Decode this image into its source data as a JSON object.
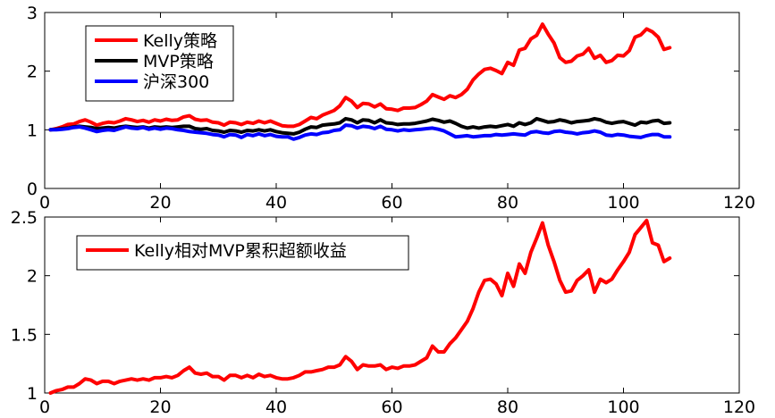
{
  "chart_data": [
    {
      "type": "line",
      "title": "",
      "xlabel": "",
      "ylabel": "",
      "xlim": [
        0,
        120
      ],
      "ylim": [
        0,
        3
      ],
      "xticks": [
        0,
        20,
        40,
        60,
        80,
        100,
        120
      ],
      "yticks": [
        0,
        1,
        2,
        3
      ],
      "xtick_labels": [
        "0",
        "20",
        "40",
        "60",
        "80",
        "100",
        "120"
      ],
      "ytick_labels": [
        "0",
        "1",
        "2",
        "3"
      ],
      "grid": false,
      "legend_position": "top-left",
      "x": [
        1,
        2,
        3,
        4,
        5,
        6,
        7,
        8,
        9,
        10,
        11,
        12,
        13,
        14,
        15,
        16,
        17,
        18,
        19,
        20,
        21,
        22,
        23,
        24,
        25,
        26,
        27,
        28,
        29,
        30,
        31,
        32,
        33,
        34,
        35,
        36,
        37,
        38,
        39,
        40,
        41,
        42,
        43,
        44,
        45,
        46,
        47,
        48,
        49,
        50,
        51,
        52,
        53,
        54,
        55,
        56,
        57,
        58,
        59,
        60,
        61,
        62,
        63,
        64,
        65,
        66,
        67,
        68,
        69,
        70,
        71,
        72,
        73,
        74,
        75,
        76,
        77,
        78,
        79,
        80,
        81,
        82,
        83,
        84,
        85,
        86,
        87,
        88,
        89,
        90,
        91,
        92,
        93,
        94,
        95,
        96,
        97,
        98,
        99,
        100,
        101,
        102,
        103,
        104,
        105,
        106,
        107,
        108
      ],
      "series": [
        {
          "name": "Kelly策略",
          "color": "#ff0000",
          "values": [
            1.0,
            1.02,
            1.05,
            1.09,
            1.1,
            1.14,
            1.17,
            1.13,
            1.08,
            1.11,
            1.13,
            1.12,
            1.15,
            1.19,
            1.17,
            1.14,
            1.16,
            1.13,
            1.17,
            1.15,
            1.18,
            1.16,
            1.17,
            1.22,
            1.24,
            1.18,
            1.16,
            1.17,
            1.13,
            1.12,
            1.08,
            1.13,
            1.12,
            1.09,
            1.13,
            1.11,
            1.15,
            1.12,
            1.15,
            1.11,
            1.07,
            1.06,
            1.06,
            1.09,
            1.15,
            1.21,
            1.19,
            1.25,
            1.29,
            1.33,
            1.41,
            1.55,
            1.49,
            1.38,
            1.45,
            1.44,
            1.39,
            1.44,
            1.36,
            1.35,
            1.33,
            1.37,
            1.37,
            1.38,
            1.43,
            1.49,
            1.6,
            1.56,
            1.52,
            1.58,
            1.55,
            1.6,
            1.69,
            1.85,
            1.95,
            2.03,
            2.05,
            2.01,
            1.96,
            2.15,
            2.1,
            2.36,
            2.39,
            2.55,
            2.61,
            2.8,
            2.63,
            2.48,
            2.23,
            2.15,
            2.17,
            2.26,
            2.29,
            2.39,
            2.22,
            2.27,
            2.15,
            2.18,
            2.27,
            2.26,
            2.35,
            2.58,
            2.62,
            2.72,
            2.67,
            2.58,
            2.37,
            2.4
          ]
        },
        {
          "name": "MVP策略",
          "color": "#000000",
          "values": [
            1.0,
            1.01,
            1.02,
            1.03,
            1.05,
            1.06,
            1.05,
            1.04,
            1.02,
            1.03,
            1.04,
            1.03,
            1.05,
            1.06,
            1.05,
            1.04,
            1.05,
            1.03,
            1.05,
            1.04,
            1.05,
            1.04,
            1.05,
            1.06,
            1.06,
            1.02,
            1.01,
            1.02,
            0.99,
            0.98,
            0.96,
            0.99,
            0.98,
            0.96,
            0.99,
            0.98,
            1.0,
            0.98,
            1.0,
            0.97,
            0.95,
            0.94,
            0.93,
            0.96,
            1.01,
            1.05,
            1.04,
            1.08,
            1.09,
            1.1,
            1.12,
            1.19,
            1.17,
            1.12,
            1.17,
            1.16,
            1.12,
            1.17,
            1.12,
            1.11,
            1.09,
            1.1,
            1.1,
            1.11,
            1.13,
            1.15,
            1.18,
            1.16,
            1.13,
            1.15,
            1.11,
            1.06,
            1.03,
            1.05,
            1.03,
            1.05,
            1.06,
            1.05,
            1.07,
            1.09,
            1.06,
            1.12,
            1.09,
            1.12,
            1.19,
            1.16,
            1.13,
            1.14,
            1.17,
            1.15,
            1.12,
            1.14,
            1.15,
            1.16,
            1.19,
            1.17,
            1.13,
            1.11,
            1.13,
            1.14,
            1.11,
            1.08,
            1.13,
            1.12,
            1.15,
            1.16,
            1.11,
            1.12
          ]
        },
        {
          "name": "沪深300",
          "color": "#0000ff",
          "values": [
            1.0,
            1.0,
            1.01,
            1.02,
            1.04,
            1.05,
            1.03,
            1.0,
            0.97,
            0.99,
            1.0,
            0.99,
            1.02,
            1.05,
            1.03,
            1.02,
            1.04,
            1.01,
            1.03,
            1.01,
            1.03,
            1.02,
            1.0,
            0.99,
            0.97,
            0.96,
            0.95,
            0.94,
            0.92,
            0.91,
            0.88,
            0.92,
            0.91,
            0.87,
            0.92,
            0.9,
            0.93,
            0.9,
            0.92,
            0.89,
            0.88,
            0.88,
            0.84,
            0.87,
            0.91,
            0.93,
            0.92,
            0.95,
            0.96,
            0.99,
            1.0,
            1.08,
            1.07,
            1.03,
            1.06,
            1.05,
            1.02,
            1.06,
            1.01,
            1.0,
            0.98,
            1.0,
            0.99,
            1.0,
            1.01,
            1.02,
            1.03,
            1.01,
            0.98,
            0.93,
            0.88,
            0.89,
            0.9,
            0.88,
            0.89,
            0.9,
            0.9,
            0.92,
            0.91,
            0.92,
            0.93,
            0.92,
            0.91,
            0.96,
            0.97,
            0.95,
            0.94,
            0.97,
            0.98,
            0.96,
            0.95,
            0.93,
            0.95,
            0.96,
            0.98,
            0.96,
            0.91,
            0.9,
            0.92,
            0.91,
            0.89,
            0.88,
            0.87,
            0.9,
            0.92,
            0.92,
            0.88,
            0.88
          ]
        }
      ]
    },
    {
      "type": "line",
      "title": "",
      "xlabel": "",
      "ylabel": "",
      "xlim": [
        0,
        120
      ],
      "ylim": [
        1,
        2.5
      ],
      "xticks": [
        0,
        20,
        40,
        60,
        80,
        100,
        120
      ],
      "yticks": [
        1,
        1.5,
        2,
        2.5
      ],
      "xtick_labels": [
        "0",
        "20",
        "40",
        "60",
        "80",
        "100",
        "120"
      ],
      "ytick_labels": [
        "1",
        "1.5",
        "2",
        "2.5"
      ],
      "grid": false,
      "legend_position": "top-left",
      "x": [
        1,
        2,
        3,
        4,
        5,
        6,
        7,
        8,
        9,
        10,
        11,
        12,
        13,
        14,
        15,
        16,
        17,
        18,
        19,
        20,
        21,
        22,
        23,
        24,
        25,
        26,
        27,
        28,
        29,
        30,
        31,
        32,
        33,
        34,
        35,
        36,
        37,
        38,
        39,
        40,
        41,
        42,
        43,
        44,
        45,
        46,
        47,
        48,
        49,
        50,
        51,
        52,
        53,
        54,
        55,
        56,
        57,
        58,
        59,
        60,
        61,
        62,
        63,
        64,
        65,
        66,
        67,
        68,
        69,
        70,
        71,
        72,
        73,
        74,
        75,
        76,
        77,
        78,
        79,
        80,
        81,
        82,
        83,
        84,
        85,
        86,
        87,
        88,
        89,
        90,
        91,
        92,
        93,
        94,
        95,
        96,
        97,
        98,
        99,
        100,
        101,
        102,
        103,
        104,
        105,
        106,
        107,
        108
      ],
      "series": [
        {
          "name": "Kelly相对MVP累积超额收益",
          "color": "#ff0000",
          "values": [
            1.0,
            1.02,
            1.03,
            1.05,
            1.05,
            1.08,
            1.12,
            1.11,
            1.08,
            1.1,
            1.1,
            1.08,
            1.1,
            1.11,
            1.12,
            1.11,
            1.12,
            1.11,
            1.13,
            1.13,
            1.14,
            1.13,
            1.15,
            1.19,
            1.22,
            1.17,
            1.16,
            1.17,
            1.14,
            1.14,
            1.11,
            1.15,
            1.15,
            1.13,
            1.15,
            1.13,
            1.16,
            1.14,
            1.15,
            1.13,
            1.12,
            1.12,
            1.13,
            1.15,
            1.18,
            1.18,
            1.19,
            1.2,
            1.22,
            1.22,
            1.24,
            1.31,
            1.27,
            1.2,
            1.24,
            1.23,
            1.23,
            1.24,
            1.2,
            1.22,
            1.21,
            1.23,
            1.23,
            1.24,
            1.27,
            1.3,
            1.4,
            1.35,
            1.35,
            1.42,
            1.47,
            1.54,
            1.61,
            1.72,
            1.86,
            1.96,
            1.97,
            1.93,
            1.83,
            2.02,
            1.91,
            2.1,
            2.02,
            2.2,
            2.32,
            2.45,
            2.26,
            2.12,
            1.96,
            1.86,
            1.87,
            1.96,
            2.0,
            2.05,
            1.86,
            1.97,
            1.94,
            1.97,
            2.05,
            2.12,
            2.2,
            2.35,
            2.41,
            2.47,
            2.28,
            2.26,
            2.12,
            2.15
          ]
        }
      ]
    }
  ]
}
